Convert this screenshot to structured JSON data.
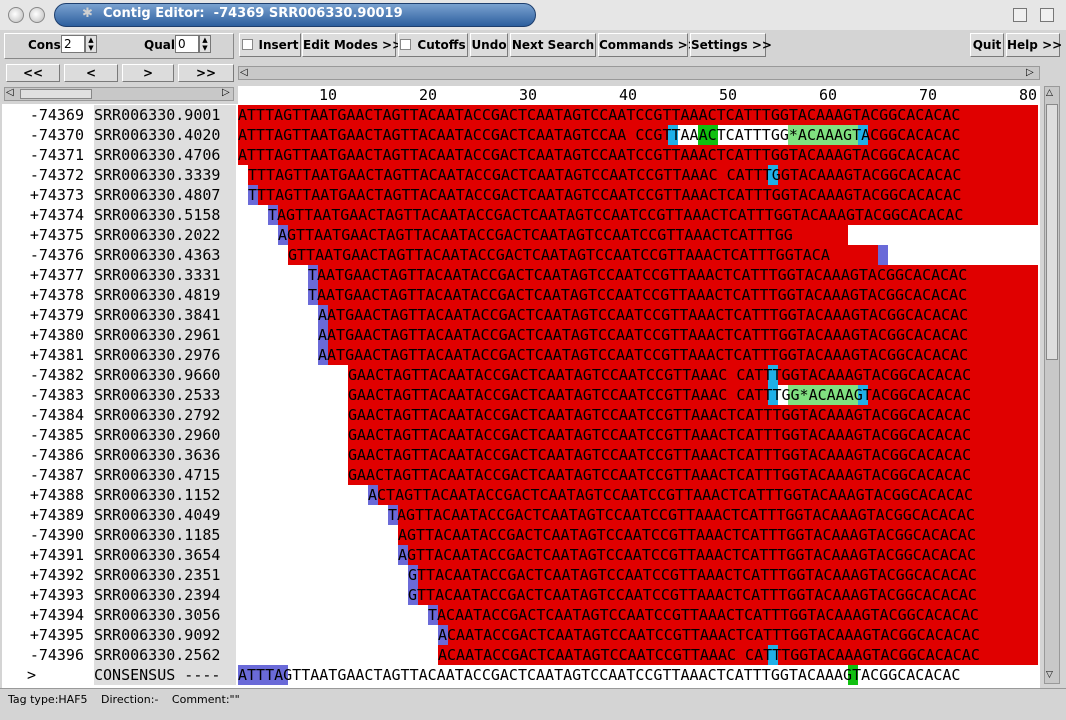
{
  "window": {
    "title": "Contig Editor:  -74369 SRR006330.90019",
    "app_icon": "bug-icon"
  },
  "toolbar": {
    "cons_label": "Cons",
    "cons_value": "2",
    "qual_label": "Qual",
    "qual_value": "0",
    "insert": "Insert",
    "edit_modes": "Edit Modes >>",
    "cutoffs": "Cutoffs",
    "undo": "Undo",
    "next_search": "Next Search",
    "commands": "Commands >>",
    "settings": "Settings >>",
    "quit": "Quit",
    "help": "Help >>"
  },
  "nav": {
    "first": "<<",
    "prev": "<",
    "next": ">",
    "last": ">>"
  },
  "ruler": [
    "10",
    "20",
    "30",
    "40",
    "50",
    "60",
    "70",
    "80"
  ],
  "colors": {
    "read_bg": "#e00000",
    "cutoff": "#6a6ad8",
    "disagree": "#20b0e8",
    "tag_green": "#80e080",
    "tag_darkgreen": "#10c010",
    "consensus_blue": "#6a6ad8"
  },
  "reads": [
    {
      "num": "-74369",
      "name": "SRR006330.9001",
      "seq": "ATTTAGTTAATGAACTAGTTACAATACCGACTCAATAGTCCAATCCGTTAAACTCATTTGGTACAAAGTACGGCACACAC",
      "start": 0,
      "red_start": 0,
      "red_end": 80
    },
    {
      "num": "-74370",
      "name": "SRR006330.4020",
      "seq": "ATTTAGTTAATGAACTAGTTACAATACCGACTCAATAGTCCAA CCGTTAAACTCATTTGG*ACAAAGTACGGCACACAC",
      "start": 0,
      "red_start": 0,
      "red_end": 80,
      "marks": [
        [
          43,
          "disagree"
        ],
        [
          44,
          "white"
        ],
        [
          45,
          "white"
        ],
        [
          46,
          "tag_darkgreen"
        ],
        [
          47,
          "tag_darkgreen"
        ],
        [
          48,
          "white"
        ],
        [
          49,
          "white"
        ],
        [
          50,
          "white"
        ],
        [
          51,
          "white"
        ],
        [
          52,
          "white"
        ],
        [
          53,
          "white"
        ],
        [
          54,
          "white"
        ],
        [
          55,
          "tag_green"
        ],
        [
          56,
          "tag_green"
        ],
        [
          57,
          "tag_green"
        ],
        [
          58,
          "tag_green"
        ],
        [
          59,
          "tag_green"
        ],
        [
          60,
          "tag_green"
        ],
        [
          61,
          "tag_green"
        ],
        [
          62,
          "disagree"
        ]
      ]
    },
    {
      "num": "-74371",
      "name": "SRR006330.4706",
      "seq": "ATTTAGTTAATGAACTAGTTACAATACCGACTCAATAGTCCAATCCGTTAAACTCATTTGGTACAAAGTACGGCACACAC",
      "start": 0,
      "red_start": 0,
      "red_end": 80
    },
    {
      "num": "-74372",
      "name": "SRR006330.3339",
      "seq": "TTTAGTTAATGAACTAGTTACAATACCGACTCAATAGTCCAATCCGTTAAAC CATTTGGTACAAAGTACGGCACACAC",
      "start": 1,
      "red_start": 1,
      "red_end": 80,
      "marks": [
        [
          53,
          "disagree"
        ]
      ]
    },
    {
      "num": "+74373",
      "name": "SRR006330.4807",
      "seq": "TTTAGTTAATGAACTAGTTACAATACCGACTCAATAGTCCAATCCGTTAAACTCATTTGGTACAAAGTACGGCACACAC",
      "start": 1,
      "red_start": 2,
      "red_end": 80,
      "marks": [
        [
          1,
          "cutoff"
        ]
      ]
    },
    {
      "num": "+74374",
      "name": "SRR006330.5158",
      "seq": "TAGTTAATGAACTAGTTACAATACCGACTCAATAGTCCAATCCGTTAAACTCATTTGGTACAAAGTACGGCACACAC",
      "start": 3,
      "red_start": 4,
      "red_end": 80,
      "marks": [
        [
          3,
          "cutoff"
        ]
      ]
    },
    {
      "num": "+74375",
      "name": "SRR006330.2022",
      "seq": "AGTTAATGAACTAGTTACAATACCGACTCAATAGTCCAATCCGTTAAACTCATTTGG",
      "start": 4,
      "red_start": 5,
      "red_end": 61,
      "marks": [
        [
          4,
          "cutoff"
        ]
      ]
    },
    {
      "num": "-74376",
      "name": "SRR006330.4363",
      "seq": "GTTAATGAACTAGTTACAATACCGACTCAATAGTCCAATCCGTTAAACTCATTTGGTACA",
      "start": 5,
      "red_start": 5,
      "red_end": 64,
      "marks": [
        [
          64,
          "cutoff"
        ]
      ]
    },
    {
      "num": "+74377",
      "name": "SRR006330.3331",
      "seq": "TAATGAACTAGTTACAATACCGACTCAATAGTCCAATCCGTTAAACTCATTTGGTACAAAGTACGGCACACAC",
      "start": 7,
      "red_start": 8,
      "red_end": 80,
      "marks": [
        [
          7,
          "cutoff"
        ]
      ]
    },
    {
      "num": "+74378",
      "name": "SRR006330.4819",
      "seq": "TAATGAACTAGTTACAATACCGACTCAATAGTCCAATCCGTTAAACTCATTTGGTACAAAGTACGGCACACAC",
      "start": 7,
      "red_start": 8,
      "red_end": 80,
      "marks": [
        [
          7,
          "cutoff"
        ]
      ]
    },
    {
      "num": "+74379",
      "name": "SRR006330.3841",
      "seq": "AATGAACTAGTTACAATACCGACTCAATAGTCCAATCCGTTAAACTCATTTGGTACAAAGTACGGCACACAC",
      "start": 8,
      "red_start": 9,
      "red_end": 80,
      "marks": [
        [
          8,
          "cutoff"
        ]
      ]
    },
    {
      "num": "+74380",
      "name": "SRR006330.2961",
      "seq": "AATGAACTAGTTACAATACCGACTCAATAGTCCAATCCGTTAAACTCATTTGGTACAAAGTACGGCACACAC",
      "start": 8,
      "red_start": 9,
      "red_end": 80,
      "marks": [
        [
          8,
          "cutoff"
        ]
      ]
    },
    {
      "num": "+74381",
      "name": "SRR006330.2976",
      "seq": "AATGAACTAGTTACAATACCGACTCAATAGTCCAATCCGTTAAACTCATTTGGTACAAAGTACGGCACACAC",
      "start": 8,
      "red_start": 9,
      "red_end": 80,
      "marks": [
        [
          8,
          "cutoff"
        ]
      ]
    },
    {
      "num": "-74382",
      "name": "SRR006330.9660",
      "seq": "GAACTAGTTACAATACCGACTCAATAGTCCAATCCGTTAAAC CATTTGGTACAAAGTACGGCACACAC",
      "start": 11,
      "red_start": 11,
      "red_end": 80,
      "marks": [
        [
          53,
          "disagree"
        ]
      ]
    },
    {
      "num": "-74383",
      "name": "SRR006330.2533",
      "seq": "GAACTAGTTACAATACCGACTCAATAGTCCAATCCGTTAAAC CATTTGG*ACAAAGTACGGCACACAC",
      "start": 11,
      "red_start": 11,
      "red_end": 80,
      "marks": [
        [
          53,
          "disagree"
        ],
        [
          54,
          "white"
        ],
        [
          55,
          "tag_green"
        ],
        [
          56,
          "tag_green"
        ],
        [
          57,
          "tag_green"
        ],
        [
          58,
          "tag_green"
        ],
        [
          59,
          "tag_green"
        ],
        [
          60,
          "tag_green"
        ],
        [
          61,
          "tag_green"
        ],
        [
          62,
          "disagree"
        ]
      ]
    },
    {
      "num": "-74384",
      "name": "SRR006330.2792",
      "seq": "GAACTAGTTACAATACCGACTCAATAGTCCAATCCGTTAAACTCATTTGGTACAAAGTACGGCACACAC",
      "start": 11,
      "red_start": 11,
      "red_end": 80
    },
    {
      "num": "-74385",
      "name": "SRR006330.2960",
      "seq": "GAACTAGTTACAATACCGACTCAATAGTCCAATCCGTTAAACTCATTTGGTACAAAGTACGGCACACAC",
      "start": 11,
      "red_start": 11,
      "red_end": 80
    },
    {
      "num": "-74386",
      "name": "SRR006330.3636",
      "seq": "GAACTAGTTACAATACCGACTCAATAGTCCAATCCGTTAAACTCATTTGGTACAAAGTACGGCACACAC",
      "start": 11,
      "red_start": 11,
      "red_end": 80
    },
    {
      "num": "-74387",
      "name": "SRR006330.4715",
      "seq": "GAACTAGTTACAATACCGACTCAATAGTCCAATCCGTTAAACTCATTTGGTACAAAGTACGGCACACAC",
      "start": 11,
      "red_start": 11,
      "red_end": 80
    },
    {
      "num": "+74388",
      "name": "SRR006330.1152",
      "seq": "ACTAGTTACAATACCGACTCAATAGTCCAATCCGTTAAACTCATTTGGTACAAAGTACGGCACACAC",
      "start": 13,
      "red_start": 14,
      "red_end": 80,
      "marks": [
        [
          13,
          "cutoff"
        ]
      ]
    },
    {
      "num": "+74389",
      "name": "SRR006330.4049",
      "seq": "TAGTTACAATACCGACTCAATAGTCCAATCCGTTAAACTCATTTGGTACAAAGTACGGCACACAC",
      "start": 15,
      "red_start": 16,
      "red_end": 80,
      "marks": [
        [
          15,
          "cutoff"
        ]
      ]
    },
    {
      "num": "-74390",
      "name": "SRR006330.1185",
      "seq": "AGTTACAATACCGACTCAATAGTCCAATCCGTTAAACTCATTTGGTACAAAGTACGGCACACAC",
      "start": 16,
      "red_start": 16,
      "red_end": 80
    },
    {
      "num": "+74391",
      "name": "SRR006330.3654",
      "seq": "AGTTACAATACCGACTCAATAGTCCAATCCGTTAAACTCATTTGGTACAAAGTACGGCACACAC",
      "start": 16,
      "red_start": 17,
      "red_end": 80,
      "marks": [
        [
          16,
          "cutoff"
        ]
      ]
    },
    {
      "num": "+74392",
      "name": "SRR006330.2351",
      "seq": "GTTACAATACCGACTCAATAGTCCAATCCGTTAAACTCATTTGGTACAAAGTACGGCACACAC",
      "start": 17,
      "red_start": 18,
      "red_end": 80,
      "marks": [
        [
          17,
          "cutoff"
        ]
      ]
    },
    {
      "num": "+74393",
      "name": "SRR006330.2394",
      "seq": "GTTACAATACCGACTCAATAGTCCAATCCGTTAAACTCATTTGGTACAAAGTACGGCACACAC",
      "start": 17,
      "red_start": 18,
      "red_end": 80,
      "marks": [
        [
          17,
          "cutoff"
        ]
      ]
    },
    {
      "num": "+74394",
      "name": "SRR006330.3056",
      "seq": "TACAATACCGACTCAATAGTCCAATCCGTTAAACTCATTTGGTACAAAGTACGGCACACAC",
      "start": 19,
      "red_start": 20,
      "red_end": 80,
      "marks": [
        [
          19,
          "cutoff"
        ]
      ]
    },
    {
      "num": "+74395",
      "name": "SRR006330.9092",
      "seq": "ACAATACCGACTCAATAGTCCAATCCGTTAAACTCATTTGGTACAAAGTACGGCACACAC",
      "start": 20,
      "red_start": 21,
      "red_end": 80,
      "marks": [
        [
          20,
          "cutoff"
        ]
      ]
    },
    {
      "num": "-74396",
      "name": "SRR006330.2562",
      "seq": "ACAATACCGACTCAATAGTCCAATCCGTTAAAC CATTTGGTACAAAGTACGGCACACAC",
      "start": 20,
      "red_start": 20,
      "red_end": 80,
      "marks": [
        [
          53,
          "disagree"
        ]
      ]
    }
  ],
  "consensus": {
    "marker": ">",
    "name": "CONSENSUS ----",
    "seq": "ATTTAGTTAATGAACTAGTTACAATACCGACTCAATAGTCCAATCCGTTAAACTCATTTGGTACAAAGTACGGCACACAC",
    "marks": [
      [
        0,
        "consensus_blue"
      ],
      [
        1,
        "consensus_blue"
      ],
      [
        2,
        "consensus_blue"
      ],
      [
        3,
        "consensus_blue"
      ],
      [
        4,
        "consensus_blue"
      ],
      [
        61,
        "tag_darkgreen"
      ]
    ]
  },
  "status": {
    "tag_type_label": "Tag type:",
    "tag_type": "HAF5",
    "direction_label": "Direction:",
    "direction": "-",
    "comment_label": "Comment:",
    "comment": "\"\""
  }
}
